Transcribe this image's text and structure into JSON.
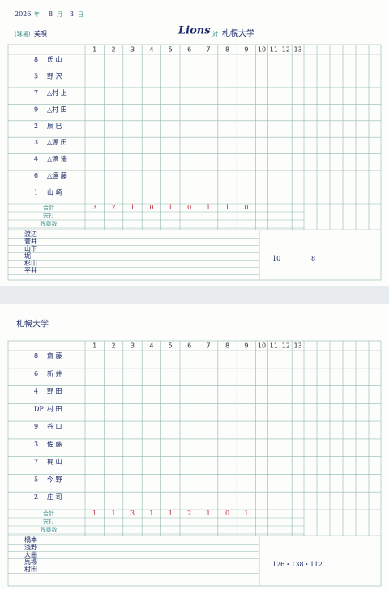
{
  "header": {
    "year": "2026",
    "year_unit": "年",
    "month": "8",
    "month_unit": "月",
    "day": "3",
    "day_unit": "日",
    "venue_label": "(球場)",
    "venue": "美唄",
    "team": "Lions",
    "vs": "対",
    "opponent": "札幌大学"
  },
  "sheets": [
    {
      "innings": [
        "1",
        "2",
        "3",
        "4",
        "5",
        "6",
        "7",
        "8",
        "9",
        "10",
        "11",
        "12",
        "13"
      ],
      "lineup": [
        [
          "8",
          "氏 山"
        ],
        [
          "5",
          "野 沢"
        ],
        [
          "7",
          "△村 上"
        ],
        [
          "9",
          "△村 田"
        ],
        [
          "2",
          "辰 巳"
        ],
        [
          "3",
          "△源 田"
        ],
        [
          "4",
          "△渡 邊"
        ],
        [
          "6",
          "△遠 藤"
        ],
        [
          "1",
          "山 崎"
        ]
      ],
      "totals_labels": [
        "合計",
        "安打",
        "残塁数"
      ],
      "runs": [
        "3",
        "2",
        "1",
        "0",
        "1",
        "0",
        "1",
        "1",
        "0"
      ],
      "pitchers": [
        "渡辺",
        "菅井",
        "山下",
        "堀",
        "杉山",
        "平井"
      ],
      "notes": [
        "10",
        "8"
      ]
    },
    {
      "team": "札幌大学",
      "innings": [
        "1",
        "2",
        "3",
        "4",
        "5",
        "6",
        "7",
        "8",
        "9",
        "10",
        "11",
        "12",
        "13"
      ],
      "lineup": [
        [
          "8",
          "齋 藤"
        ],
        [
          "6",
          "新 井"
        ],
        [
          "4",
          "野 田"
        ],
        [
          "DP",
          "村 田"
        ],
        [
          "9",
          "谷 口"
        ],
        [
          "3",
          "佐 藤"
        ],
        [
          "7",
          "梶 山"
        ],
        [
          "5",
          "今 野"
        ],
        [
          "2",
          "庄 司"
        ]
      ],
      "totals_labels": [
        "合計",
        "安打",
        "残塁数"
      ],
      "runs": [
        "1",
        "1",
        "3",
        "1",
        "1",
        "2",
        "1",
        "0",
        "1"
      ],
      "pitchers": [
        "橋本",
        "浅野",
        "大曲",
        "馬場",
        "村田"
      ],
      "notes": [
        "126・138・112"
      ]
    }
  ]
}
